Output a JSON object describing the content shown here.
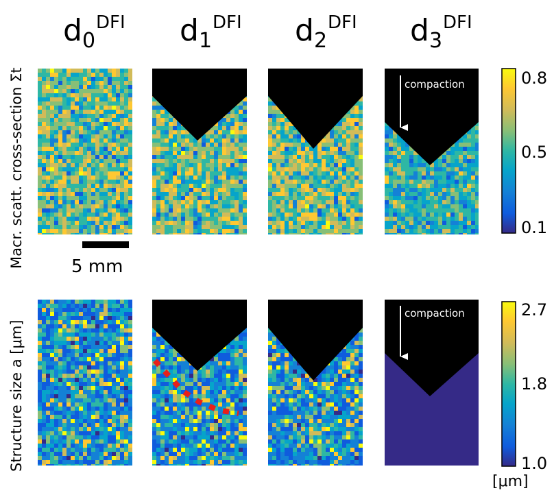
{
  "titles": [
    {
      "base": "d",
      "sub": "0",
      "sup": "DFI"
    },
    {
      "base": "d",
      "sub": "1",
      "sup": "DFI"
    },
    {
      "base": "d",
      "sub": "2",
      "sup": "DFI"
    },
    {
      "base": "d",
      "sub": "3",
      "sup": "DFI"
    }
  ],
  "rows": {
    "top_label": "Macr. scatt. cross-section Σt",
    "bottom_label": "Structure size a [μm]"
  },
  "colorbars": {
    "top": {
      "ticks": [
        "0.8",
        "0.5",
        "0.1"
      ]
    },
    "bottom": {
      "ticks": [
        "2.7",
        "1.8",
        "1.0"
      ],
      "unit": "[μm]"
    }
  },
  "scalebar": {
    "label": "5 mm"
  },
  "annotations": {
    "compaction_top": "compaction",
    "compaction_bottom": "compaction"
  },
  "colors": {
    "parula": [
      "#352a87",
      "#0f5cdd",
      "#1481d6",
      "#06a4ca",
      "#2eb7a4",
      "#87bf77",
      "#d1bb59",
      "#fec832",
      "#f9fb0e"
    ],
    "mask": "#000000",
    "marker": "#e8201a"
  }
}
